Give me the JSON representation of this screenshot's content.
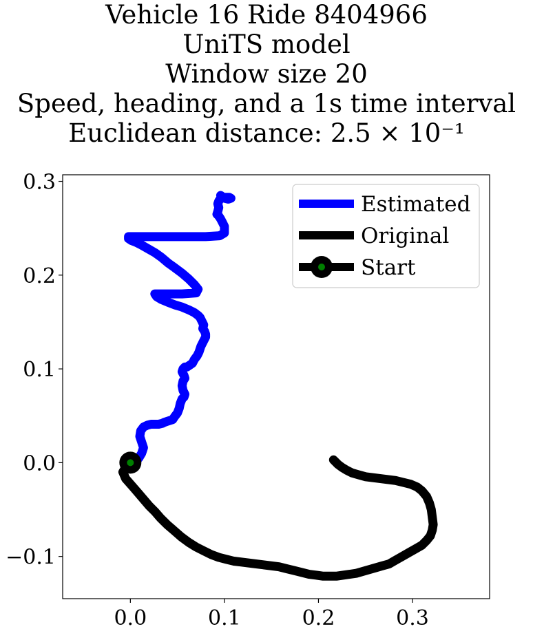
{
  "chart_data": {
    "type": "line",
    "title_lines": [
      "Vehicle 16 Ride 8404966",
      "UniTS model",
      "Window size 20",
      "Speed, heading, and a 1s time interval",
      "Euclidean distance: 2.5 × 10⁻¹"
    ],
    "xlim": [
      -0.072,
      0.382
    ],
    "ylim": [
      -0.145,
      0.307
    ],
    "x_ticks": [
      0.0,
      0.1,
      0.2,
      0.3
    ],
    "x_tick_labels": [
      "0.0",
      "0.1",
      "0.2",
      "0.3"
    ],
    "y_ticks": [
      -0.1,
      0.0,
      0.1,
      0.2,
      0.3
    ],
    "y_tick_labels": [
      "−0.1",
      "0.0",
      "0.1",
      "0.2",
      "0.3"
    ],
    "grid": false,
    "legend": {
      "placement": "top-right",
      "entries": [
        "Estimated",
        "Original",
        "Start"
      ]
    },
    "series": [
      {
        "name": "Estimated",
        "color": "#0000ff",
        "x": [
          0.0,
          0.006,
          0.009,
          0.012,
          0.014,
          0.012,
          0.01,
          0.011,
          0.014,
          0.018,
          0.022,
          0.026,
          0.03,
          0.034,
          0.036,
          0.039,
          0.042,
          0.045,
          0.047,
          0.05,
          0.052,
          0.053,
          0.055,
          0.057,
          0.058,
          0.056,
          0.055,
          0.056,
          0.058,
          0.057,
          0.055,
          0.056,
          0.058,
          0.06,
          0.063,
          0.066,
          0.068,
          0.071,
          0.073,
          0.075,
          0.078,
          0.08,
          0.08,
          0.079,
          0.077,
          0.078,
          0.076,
          0.074,
          0.072,
          0.068,
          0.062,
          0.055,
          0.048,
          0.04,
          0.033,
          0.028,
          0.026,
          0.03,
          0.04,
          0.055,
          0.07,
          0.072,
          0.068,
          0.062,
          0.055,
          0.047,
          0.04,
          0.033,
          0.026,
          0.019,
          0.012,
          0.006,
          0.001,
          -0.002,
          -0.002,
          0.005,
          0.02,
          0.04,
          0.06,
          0.08,
          0.095,
          0.1,
          0.1,
          0.1,
          0.098,
          0.096,
          0.094,
          0.092,
          0.093,
          0.094,
          0.093,
          0.094,
          0.096,
          0.1,
          0.105,
          0.107,
          0.104,
          0.1,
          0.096
        ],
        "y": [
          0.0,
          0.002,
          0.005,
          0.01,
          0.016,
          0.022,
          0.028,
          0.034,
          0.038,
          0.04,
          0.041,
          0.041,
          0.041,
          0.042,
          0.043,
          0.044,
          0.045,
          0.046,
          0.049,
          0.053,
          0.058,
          0.063,
          0.068,
          0.07,
          0.073,
          0.077,
          0.082,
          0.087,
          0.09,
          0.093,
          0.097,
          0.1,
          0.102,
          0.102,
          0.104,
          0.106,
          0.11,
          0.114,
          0.118,
          0.124,
          0.13,
          0.134,
          0.137,
          0.14,
          0.143,
          0.147,
          0.151,
          0.155,
          0.157,
          0.16,
          0.163,
          0.166,
          0.168,
          0.171,
          0.174,
          0.177,
          0.18,
          0.18,
          0.18,
          0.18,
          0.181,
          0.185,
          0.19,
          0.196,
          0.202,
          0.208,
          0.213,
          0.219,
          0.224,
          0.228,
          0.232,
          0.235,
          0.237,
          0.239,
          0.241,
          0.241,
          0.241,
          0.241,
          0.241,
          0.241,
          0.242,
          0.245,
          0.248,
          0.252,
          0.256,
          0.26,
          0.263,
          0.265,
          0.268,
          0.272,
          0.276,
          0.279,
          0.282,
          0.283,
          0.283,
          0.282,
          0.281,
          0.282,
          0.285
        ]
      },
      {
        "name": "Original",
        "color": "#000000",
        "x": [
          0.0,
          -0.005,
          -0.008,
          -0.005,
          0.002,
          0.008,
          0.014,
          0.02,
          0.026,
          0.032,
          0.039,
          0.046,
          0.054,
          0.062,
          0.07,
          0.078,
          0.086,
          0.094,
          0.102,
          0.11,
          0.118,
          0.126,
          0.134,
          0.142,
          0.15,
          0.158,
          0.166,
          0.174,
          0.182,
          0.19,
          0.198,
          0.205,
          0.212,
          0.219,
          0.226,
          0.233,
          0.24,
          0.247,
          0.254,
          0.261,
          0.268,
          0.275,
          0.282,
          0.289,
          0.296,
          0.303,
          0.31,
          0.315,
          0.319,
          0.321,
          0.322,
          0.321,
          0.32,
          0.318,
          0.315,
          0.31,
          0.305,
          0.298,
          0.29,
          0.282,
          0.274,
          0.266,
          0.258,
          0.25,
          0.243,
          0.236,
          0.23,
          0.225,
          0.221,
          0.218,
          0.216
        ],
        "y": [
          0.0,
          -0.005,
          -0.01,
          -0.017,
          -0.025,
          -0.032,
          -0.039,
          -0.046,
          -0.052,
          -0.059,
          -0.066,
          -0.072,
          -0.079,
          -0.085,
          -0.09,
          -0.094,
          -0.098,
          -0.101,
          -0.103,
          -0.105,
          -0.106,
          -0.107,
          -0.108,
          -0.109,
          -0.11,
          -0.111,
          -0.113,
          -0.115,
          -0.117,
          -0.119,
          -0.12,
          -0.121,
          -0.121,
          -0.121,
          -0.12,
          -0.119,
          -0.118,
          -0.116,
          -0.114,
          -0.112,
          -0.11,
          -0.108,
          -0.104,
          -0.1,
          -0.096,
          -0.092,
          -0.088,
          -0.083,
          -0.078,
          -0.072,
          -0.066,
          -0.058,
          -0.05,
          -0.043,
          -0.036,
          -0.03,
          -0.026,
          -0.023,
          -0.021,
          -0.019,
          -0.018,
          -0.017,
          -0.016,
          -0.015,
          -0.013,
          -0.011,
          -0.008,
          -0.005,
          -0.002,
          0.001,
          0.003
        ]
      }
    ],
    "start_point": {
      "name": "Start",
      "x": 0.0,
      "y": 0.0,
      "outer_color": "#000000",
      "inner_color": "#008000"
    }
  }
}
